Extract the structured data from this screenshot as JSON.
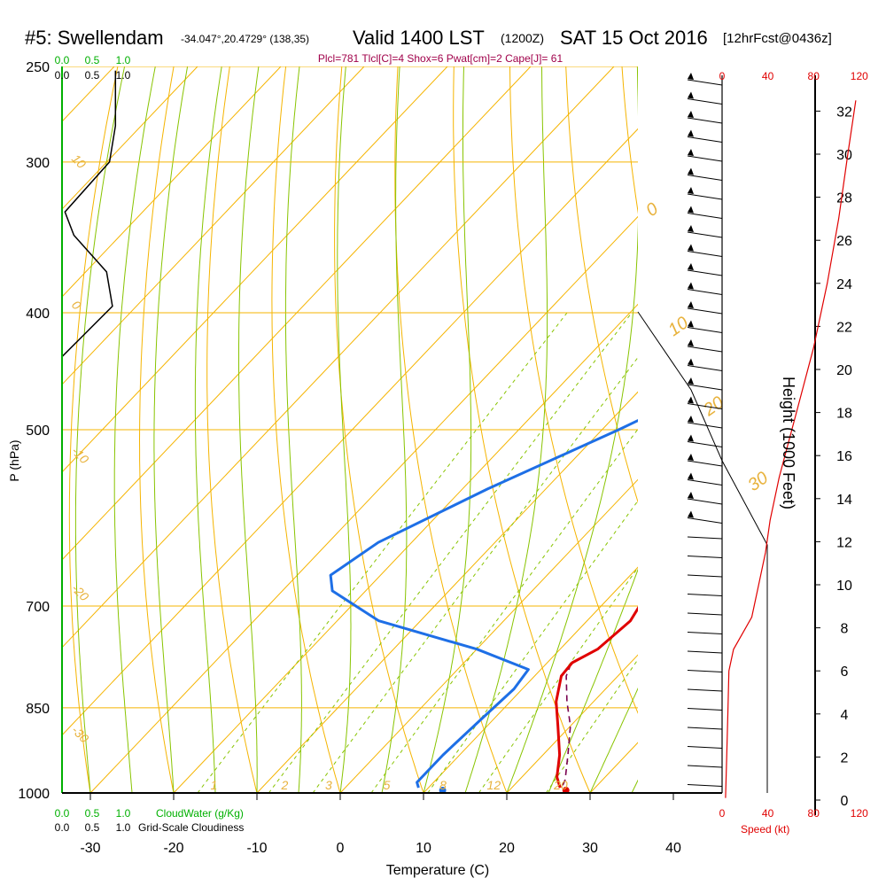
{
  "title": {
    "station": "#5: Swellendam",
    "coords": "-34.047°,20.4729° (138,35)",
    "valid": "Valid 1400 LST",
    "utc": "(1200Z)",
    "date": "SAT 15 Oct 2016",
    "fcst": "[12hrFcst@0436z]"
  },
  "indices_line": "Plcl=781 Tlcl[C]=4 Shox=6 Pwat[cm]=2 Cape[J]= 61",
  "colors": {
    "temperature": "#e00000",
    "dewpoint": "#1e6fe6",
    "parcel": "#7a0050",
    "isobar": "#f5b400",
    "dry_adiabat": "#f5b400",
    "moist_adiabat": "#88c400",
    "mixing_ratio": "#88c400",
    "cloud_water": "#00b000",
    "cloudiness": "#000000",
    "wind_speed": "#e00000",
    "index_text": "#a0004a"
  },
  "chart_data": {
    "type": "skew-t",
    "xlabel": "Temperature (C)",
    "ylabel": "P (hPa)",
    "right_label": "Height (1000 Feet)",
    "x_ticks": [
      -30,
      -20,
      -10,
      0,
      10,
      20,
      30,
      40
    ],
    "pressure_ticks": [
      250,
      300,
      400,
      500,
      700,
      850,
      1000
    ],
    "height_ticks_kft": [
      0,
      2,
      4,
      6,
      8,
      10,
      12,
      14,
      16,
      18,
      20,
      22,
      24,
      26,
      28,
      30,
      32
    ],
    "temperature_profile": [
      {
        "p": 265,
        "t": -1.5
      },
      {
        "p": 300,
        "t": 0.5
      },
      {
        "p": 340,
        "t": 2.5
      },
      {
        "p": 380,
        "t": 3.8
      },
      {
        "p": 420,
        "t": 4.6
      },
      {
        "p": 470,
        "t": 5.4
      },
      {
        "p": 520,
        "t": 6.5
      },
      {
        "p": 580,
        "t": 8.5
      },
      {
        "p": 640,
        "t": 11.5
      },
      {
        "p": 680,
        "t": 14.0
      },
      {
        "p": 720,
        "t": 15.2
      },
      {
        "p": 760,
        "t": 14.5
      },
      {
        "p": 780,
        "t": 13.0
      },
      {
        "p": 800,
        "t": 13.2
      },
      {
        "p": 840,
        "t": 15.5
      },
      {
        "p": 880,
        "t": 18.5
      },
      {
        "p": 930,
        "t": 22.0
      },
      {
        "p": 970,
        "t": 24.2
      },
      {
        "p": 990,
        "t": 25.8
      }
    ],
    "dewpoint_profile": [
      {
        "p": 265,
        "t": -5.5
      },
      {
        "p": 300,
        "t": -4.8
      },
      {
        "p": 340,
        "t": -4.0
      },
      {
        "p": 380,
        "t": -2.0
      },
      {
        "p": 420,
        "t": 0.0
      },
      {
        "p": 460,
        "t": -2.0
      },
      {
        "p": 500,
        "t": -8.0
      },
      {
        "p": 560,
        "t": -17.0
      },
      {
        "p": 620,
        "t": -24.0
      },
      {
        "p": 660,
        "t": -26.0
      },
      {
        "p": 680,
        "t": -24.0
      },
      {
        "p": 720,
        "t": -15.0
      },
      {
        "p": 760,
        "t": 0.0
      },
      {
        "p": 790,
        "t": 8.5
      },
      {
        "p": 820,
        "t": 9.0
      },
      {
        "p": 870,
        "t": 8.5
      },
      {
        "p": 930,
        "t": 8.0
      },
      {
        "p": 980,
        "t": 8.0
      },
      {
        "p": 990,
        "t": 8.8
      }
    ],
    "parcel_profile": [
      {
        "p": 782,
        "t": 13.0
      },
      {
        "p": 800,
        "t": 13.8
      },
      {
        "p": 840,
        "t": 16.8
      },
      {
        "p": 880,
        "t": 20.0
      },
      {
        "p": 930,
        "t": 23.0
      },
      {
        "p": 975,
        "t": 25.5
      },
      {
        "p": 990,
        "t": 26.0
      }
    ],
    "surface_temperature_marker": {
      "p": 995,
      "t": 26.8
    },
    "surface_dewpoint_marker": {
      "p": 995,
      "t": 12.0
    },
    "cloud_water_axis_ticks": [
      "0.0",
      "0.5",
      "1.0"
    ],
    "cloudiness_axis_ticks": [
      "0.0",
      "0.5",
      "1.0"
    ],
    "cloud_water_label": "CloudWater (g/Kg)",
    "cloudiness_label": "Grid-Scale Cloudiness",
    "cloudiness_profile": [
      {
        "p": 252,
        "v": 0.9
      },
      {
        "p": 280,
        "v": 0.9
      },
      {
        "p": 300,
        "v": 0.8
      },
      {
        "p": 330,
        "v": 0.05
      },
      {
        "p": 345,
        "v": 0.2
      },
      {
        "p": 370,
        "v": 0.75
      },
      {
        "p": 395,
        "v": 0.85
      },
      {
        "p": 435,
        "v": 0.0
      }
    ],
    "wind_speed_axis_ticks": [
      0,
      40,
      80,
      120
    ],
    "wind_speed_label": "Speed (kt)",
    "wind_speed_profile": [
      {
        "h": 0.1,
        "s": 3
      },
      {
        "h": 2.0,
        "s": 4
      },
      {
        "h": 4.0,
        "s": 5
      },
      {
        "h": 6.0,
        "s": 6
      },
      {
        "h": 7.0,
        "s": 10
      },
      {
        "h": 8.5,
        "s": 26
      },
      {
        "h": 10.0,
        "s": 32
      },
      {
        "h": 11.5,
        "s": 38
      },
      {
        "h": 13.0,
        "s": 42
      },
      {
        "h": 15.0,
        "s": 50
      },
      {
        "h": 18.0,
        "s": 65
      },
      {
        "h": 21.0,
        "s": 80
      },
      {
        "h": 24.0,
        "s": 92
      },
      {
        "h": 27.0,
        "s": 102
      },
      {
        "h": 30.0,
        "s": 110
      },
      {
        "h": 32.5,
        "s": 117
      }
    ],
    "mixing_ratio_labels": [
      "1",
      "2",
      "3",
      "5",
      "8",
      "12",
      "20"
    ],
    "mixing_ratio_values": [
      1,
      2,
      3,
      5,
      8,
      12,
      20
    ],
    "dry_adiabat_labels": [
      {
        "text": "10"
      },
      {
        "text": "0"
      },
      {
        "text": "-10"
      },
      {
        "text": "-20"
      },
      {
        "text": "-30"
      }
    ],
    "moist_adiabat_labels": [
      {
        "text": "0"
      },
      {
        "text": "10"
      },
      {
        "text": "20"
      },
      {
        "text": "30"
      }
    ]
  }
}
